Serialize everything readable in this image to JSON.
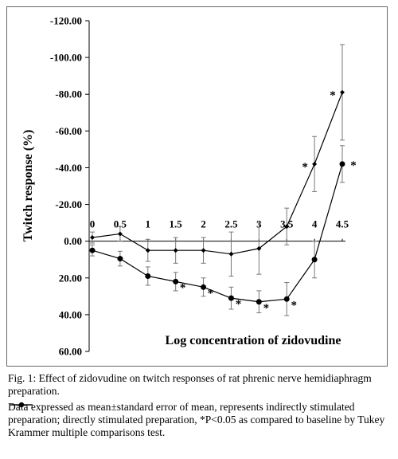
{
  "chart_data": {
    "type": "line",
    "ylabel": "Twitch response (%)",
    "xlabel": "Log concentration of zidovudine",
    "x_ticks": [
      "0",
      "0.5",
      "1",
      "1.5",
      "2",
      "2.5",
      "3",
      "3.5",
      "4",
      "4.5"
    ],
    "y_ticks": [
      "-120.00",
      "-100.00",
      "-80.00",
      "-60.00",
      "-40.00",
      "-20.00",
      "0.00",
      "20.00",
      "40.00",
      "60.00"
    ],
    "ylim": [
      -120,
      60
    ],
    "y_inverted": true,
    "xlim": [
      0,
      4.5
    ],
    "series": [
      {
        "key": "indirect",
        "marker": "small-diamond",
        "x": [
          0,
          0.5,
          1,
          1.5,
          2,
          2.5,
          3,
          3.5,
          4,
          4.5
        ],
        "y": [
          -2,
          -4,
          5,
          5,
          5,
          7,
          4,
          -8,
          -42,
          -81
        ],
        "err": [
          3,
          4,
          6,
          7,
          7,
          12,
          14,
          10,
          15,
          26
        ],
        "significant": [
          false,
          false,
          false,
          false,
          false,
          false,
          false,
          false,
          true,
          true
        ]
      },
      {
        "key": "direct",
        "marker": "large-circle",
        "x": [
          0,
          0.5,
          1,
          1.5,
          2,
          2.5,
          3,
          3.5,
          4,
          4.5
        ],
        "y": [
          5,
          9.5,
          19,
          22,
          25,
          31,
          33,
          31.5,
          10,
          -42
        ],
        "err": [
          3,
          4,
          5,
          5,
          5,
          6,
          6,
          9,
          10,
          10
        ],
        "significant": [
          false,
          false,
          false,
          true,
          true,
          true,
          true,
          true,
          false,
          true
        ]
      }
    ],
    "significance_marker": "*"
  },
  "caption": {
    "title": "Fig. 1: Effect of zidovudine on twitch responses of rat phrenic nerve hemidiaphragm preparation.",
    "body_part1": "Data expressed as mean±standard error of mean,",
    "body_part2": "represents indirectly stimulated preparation;",
    "body_part3": "directly stimulated preparation, *P<0.05 as compared to baseline by Tukey Krammer multiple comparisons test."
  }
}
